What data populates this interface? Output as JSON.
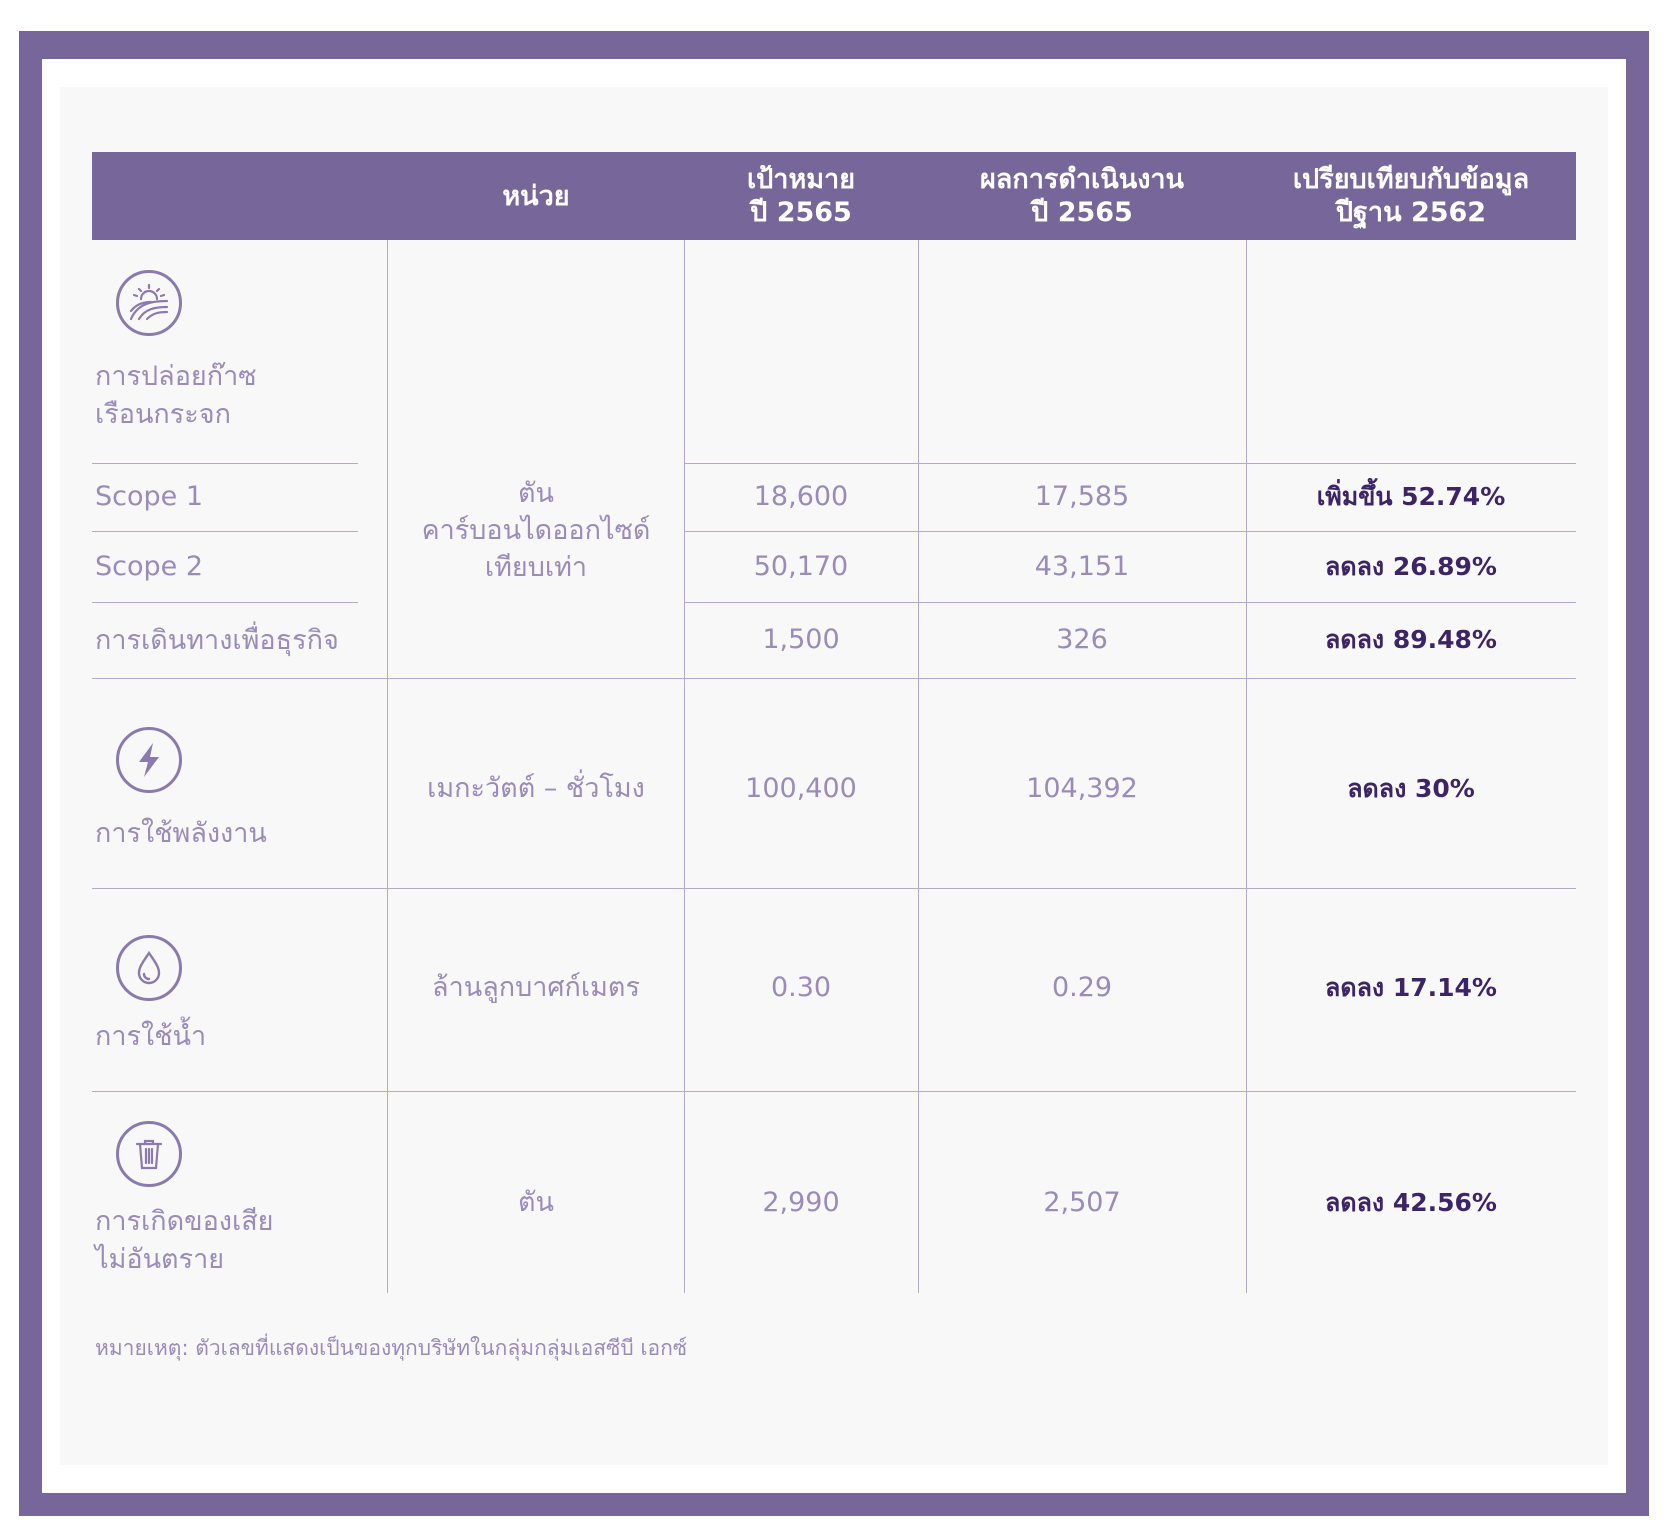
{
  "header": {
    "unit": "หน่วย",
    "target_line1": "เป้าหมาย",
    "target_line2": "ปี 2565",
    "result_line1": "ผลการดำเนินงาน",
    "result_line2": "ปี 2565",
    "compare_line1": "เปรียบเทียบกับข้อมูล",
    "compare_line2": "ปีฐาน 2562"
  },
  "ghg": {
    "icon": "sun-field-icon",
    "title_line1": "การปล่อยก๊าซ",
    "title_line2": "เรือนกระจก",
    "unit_line1": "ตัน",
    "unit_line2": "คาร์บอนไดออกไซด์",
    "unit_line3": "เทียบเท่า",
    "rows": [
      {
        "label": "Scope 1",
        "target": "18,600",
        "result": "17,585",
        "compare": "เพิ่มขึ้น 52.74%"
      },
      {
        "label": "Scope 2",
        "target": "50,170",
        "result": "43,151",
        "compare": "ลดลง 26.89%"
      },
      {
        "label": "การเดินทางเพื่อธุรกิจ",
        "target": "1,500",
        "result": "326",
        "compare": "ลดลง 89.48%"
      }
    ]
  },
  "energy": {
    "icon": "lightning-icon",
    "title": "การใช้พลังงาน",
    "unit": "เมกะวัตต์ – ชั่วโมง",
    "target": "100,400",
    "result": "104,392",
    "compare": "ลดลง 30%"
  },
  "water": {
    "icon": "water-drop-icon",
    "title": "การใช้น้ำ",
    "unit": "ล้านลูกบาศก์เมตร",
    "target": "0.30",
    "result": "0.29",
    "compare": "ลดลง 17.14%"
  },
  "waste": {
    "icon": "trash-bin-icon",
    "title_line1": "การเกิดของเสีย",
    "title_line2": "ไม่อันตราย",
    "unit": "ตัน",
    "target": "2,990",
    "result": "2,507",
    "compare": "ลดลง 42.56%"
  },
  "footnote": "หมายเหตุ: ตัวเลขที่แสดงเป็นของทุกบริษัทในกลุ่มกลุ่มเอสซีบี เอกซ์",
  "colors": {
    "frame": "#776699",
    "header_bg": "#776699",
    "text": "#9a8bb8",
    "emphasis": "#3d2466",
    "panel": "#f8f8f8"
  }
}
